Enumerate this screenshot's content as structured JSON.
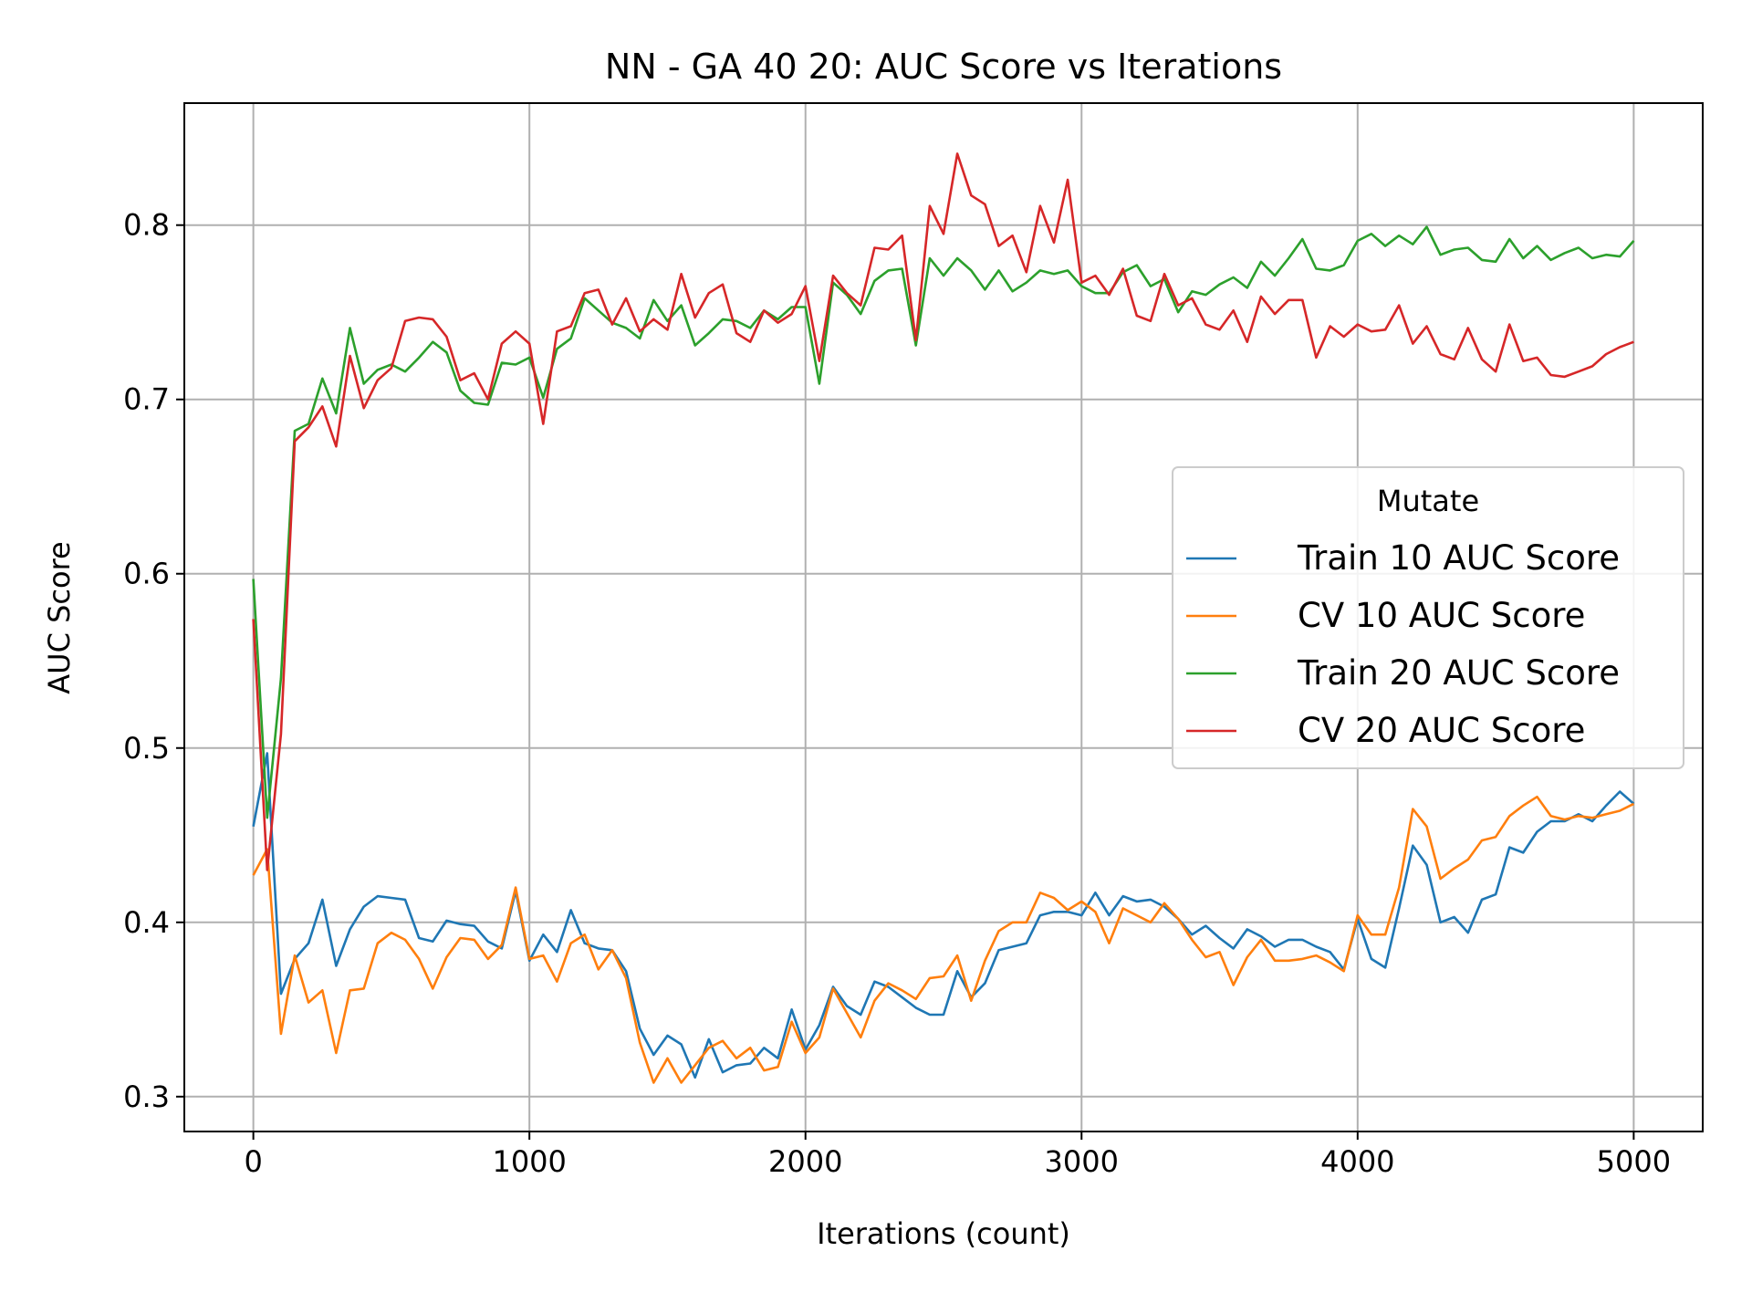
{
  "chart_data": {
    "type": "line",
    "title": "NN - GA 40 20: AUC Score vs Iterations",
    "xlabel": "Iterations (count)",
    "ylabel": "AUC Score",
    "xlim": [
      -250,
      5250
    ],
    "ylim": [
      0.28,
      0.87
    ],
    "xticks": [
      0,
      1000,
      2000,
      3000,
      4000,
      5000
    ],
    "xtick_labels": [
      "0",
      "1000",
      "2000",
      "3000",
      "4000",
      "5000"
    ],
    "yticks": [
      0.3,
      0.4,
      0.5,
      0.6,
      0.7,
      0.8
    ],
    "ytick_labels": [
      "0.3",
      "0.4",
      "0.5",
      "0.6",
      "0.7",
      "0.8"
    ],
    "grid": true,
    "legend": {
      "title": "Mutate",
      "placement": "center-right"
    },
    "x": [
      0,
      50,
      100,
      150,
      200,
      250,
      300,
      350,
      400,
      450,
      500,
      550,
      600,
      650,
      700,
      750,
      800,
      850,
      900,
      950,
      1000,
      1050,
      1100,
      1150,
      1200,
      1250,
      1300,
      1350,
      1400,
      1450,
      1500,
      1550,
      1600,
      1650,
      1700,
      1750,
      1800,
      1850,
      1900,
      1950,
      2000,
      2050,
      2100,
      2150,
      2200,
      2250,
      2300,
      2350,
      2400,
      2450,
      2500,
      2550,
      2600,
      2650,
      2700,
      2750,
      2800,
      2850,
      2900,
      2950,
      3000,
      3050,
      3100,
      3150,
      3200,
      3250,
      3300,
      3350,
      3400,
      3450,
      3500,
      3550,
      3600,
      3650,
      3700,
      3750,
      3800,
      3850,
      3900,
      3950,
      4000,
      4050,
      4100,
      4150,
      4200,
      4250,
      4300,
      4350,
      4400,
      4450,
      4500,
      4550,
      4600,
      4650,
      4700,
      4750,
      4800,
      4850,
      4900,
      4950,
      5000
    ],
    "series": [
      {
        "name": "Train 10 AUC Score",
        "color": "#1f77b4",
        "values": [
          0.455,
          0.497,
          0.359,
          0.379,
          0.388,
          0.413,
          0.375,
          0.396,
          0.409,
          0.415,
          0.414,
          0.413,
          0.391,
          0.389,
          0.401,
          0.399,
          0.398,
          0.389,
          0.385,
          0.418,
          0.378,
          0.393,
          0.383,
          0.407,
          0.388,
          0.385,
          0.384,
          0.372,
          0.339,
          0.324,
          0.335,
          0.33,
          0.311,
          0.333,
          0.314,
          0.318,
          0.319,
          0.328,
          0.322,
          0.35,
          0.327,
          0.341,
          0.363,
          0.352,
          0.347,
          0.366,
          0.363,
          0.357,
          0.351,
          0.347,
          0.347,
          0.372,
          0.357,
          0.365,
          0.384,
          0.386,
          0.388,
          0.404,
          0.406,
          0.406,
          0.404,
          0.417,
          0.404,
          0.415,
          0.412,
          0.413,
          0.409,
          0.402,
          0.393,
          0.398,
          0.391,
          0.385,
          0.396,
          0.392,
          0.386,
          0.39,
          0.39,
          0.386,
          0.383,
          0.373,
          0.402,
          0.379,
          0.374,
          0.408,
          0.444,
          0.433,
          0.4,
          0.403,
          0.394,
          0.413,
          0.416,
          0.443,
          0.44,
          0.452,
          0.458,
          0.458,
          0.462,
          0.458,
          0.467,
          0.475,
          0.468
        ]
      },
      {
        "name": "CV 10 AUC Score",
        "color": "#ff7f0e",
        "values": [
          0.427,
          0.442,
          0.336,
          0.381,
          0.354,
          0.361,
          0.325,
          0.361,
          0.362,
          0.388,
          0.394,
          0.39,
          0.379,
          0.362,
          0.38,
          0.391,
          0.39,
          0.379,
          0.387,
          0.42,
          0.379,
          0.381,
          0.366,
          0.388,
          0.393,
          0.373,
          0.384,
          0.368,
          0.331,
          0.308,
          0.322,
          0.308,
          0.318,
          0.328,
          0.332,
          0.322,
          0.328,
          0.315,
          0.317,
          0.343,
          0.325,
          0.334,
          0.362,
          0.348,
          0.334,
          0.355,
          0.365,
          0.361,
          0.356,
          0.368,
          0.369,
          0.381,
          0.355,
          0.378,
          0.395,
          0.4,
          0.4,
          0.417,
          0.414,
          0.407,
          0.412,
          0.406,
          0.388,
          0.408,
          0.404,
          0.4,
          0.411,
          0.402,
          0.39,
          0.38,
          0.383,
          0.364,
          0.38,
          0.39,
          0.378,
          0.378,
          0.379,
          0.381,
          0.377,
          0.372,
          0.404,
          0.393,
          0.393,
          0.42,
          0.465,
          0.455,
          0.425,
          0.431,
          0.436,
          0.447,
          0.449,
          0.461,
          0.467,
          0.472,
          0.461,
          0.459,
          0.461,
          0.46,
          0.462,
          0.464,
          0.468
        ]
      },
      {
        "name": "Train 20 AUC Score",
        "color": "#2ca02c",
        "values": [
          0.597,
          0.46,
          0.54,
          0.682,
          0.686,
          0.712,
          0.692,
          0.741,
          0.709,
          0.717,
          0.72,
          0.716,
          0.724,
          0.733,
          0.727,
          0.705,
          0.698,
          0.697,
          0.721,
          0.72,
          0.724,
          0.701,
          0.729,
          0.735,
          0.758,
          0.751,
          0.744,
          0.741,
          0.735,
          0.757,
          0.745,
          0.754,
          0.731,
          0.738,
          0.746,
          0.745,
          0.741,
          0.751,
          0.746,
          0.753,
          0.753,
          0.709,
          0.767,
          0.76,
          0.749,
          0.768,
          0.774,
          0.775,
          0.731,
          0.781,
          0.771,
          0.781,
          0.774,
          0.763,
          0.774,
          0.762,
          0.767,
          0.774,
          0.772,
          0.774,
          0.765,
          0.761,
          0.761,
          0.773,
          0.777,
          0.765,
          0.769,
          0.75,
          0.762,
          0.76,
          0.766,
          0.77,
          0.764,
          0.779,
          0.771,
          0.781,
          0.792,
          0.775,
          0.774,
          0.777,
          0.791,
          0.795,
          0.788,
          0.794,
          0.789,
          0.799,
          0.783,
          0.786,
          0.787,
          0.78,
          0.779,
          0.792,
          0.781,
          0.788,
          0.78,
          0.784,
          0.787,
          0.781,
          0.783,
          0.782,
          0.791
        ]
      },
      {
        "name": "CV 20 AUC Score",
        "color": "#d62728",
        "values": [
          0.574,
          0.43,
          0.508,
          0.676,
          0.684,
          0.696,
          0.673,
          0.725,
          0.695,
          0.711,
          0.718,
          0.745,
          0.747,
          0.746,
          0.736,
          0.711,
          0.715,
          0.7,
          0.732,
          0.739,
          0.732,
          0.686,
          0.739,
          0.742,
          0.761,
          0.763,
          0.743,
          0.758,
          0.739,
          0.746,
          0.74,
          0.772,
          0.747,
          0.761,
          0.766,
          0.738,
          0.733,
          0.751,
          0.744,
          0.749,
          0.765,
          0.722,
          0.771,
          0.761,
          0.754,
          0.787,
          0.786,
          0.794,
          0.734,
          0.811,
          0.795,
          0.841,
          0.817,
          0.812,
          0.788,
          0.794,
          0.773,
          0.811,
          0.79,
          0.826,
          0.767,
          0.771,
          0.76,
          0.775,
          0.748,
          0.745,
          0.772,
          0.754,
          0.758,
          0.743,
          0.74,
          0.751,
          0.733,
          0.759,
          0.749,
          0.757,
          0.757,
          0.724,
          0.742,
          0.736,
          0.743,
          0.739,
          0.74,
          0.754,
          0.732,
          0.742,
          0.726,
          0.723,
          0.741,
          0.723,
          0.716,
          0.743,
          0.722,
          0.724,
          0.714,
          0.713,
          0.716,
          0.719,
          0.726,
          0.73,
          0.733
        ]
      }
    ]
  }
}
